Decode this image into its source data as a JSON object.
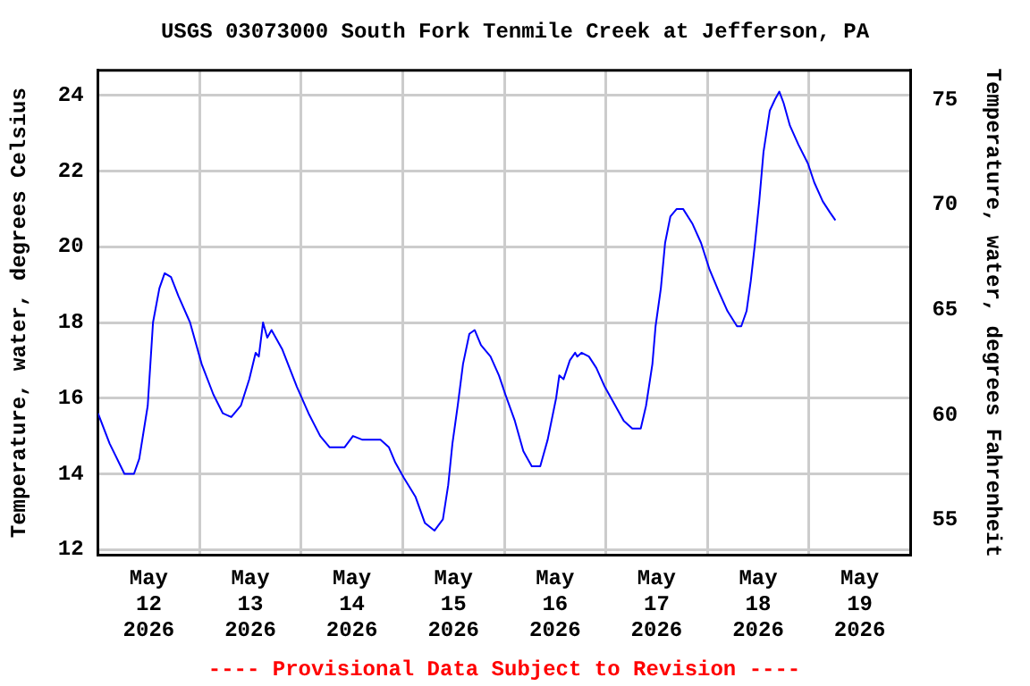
{
  "chart_data": {
    "type": "line",
    "title": "USGS 03073000 South Fork Tenmile Creek at Jefferson, PA",
    "ylabel": "Temperature, water, degrees Celsius",
    "y2label": "Temperature, water, degrees Fahrenheit",
    "annotations": [
      "---- Provisional Data Subject to Revision ----"
    ],
    "x": [
      "2026-05-12T00:00",
      "2026-05-12T02:45",
      "2026-05-12T06:15",
      "2026-05-12T08:30",
      "2026-05-12T09:45",
      "2026-05-12T11:45",
      "2026-05-12T13:00",
      "2026-05-12T14:30",
      "2026-05-12T15:45",
      "2026-05-12T17:15",
      "2026-05-12T19:00",
      "2026-05-12T21:45",
      "2026-05-13T00:30",
      "2026-05-13T03:15",
      "2026-05-13T05:30",
      "2026-05-13T07:30",
      "2026-05-13T09:45",
      "2026-05-13T11:45",
      "2026-05-13T13:15",
      "2026-05-13T14:00",
      "2026-05-13T15:00",
      "2026-05-13T16:00",
      "2026-05-13T17:00",
      "2026-05-13T19:30",
      "2026-05-13T23:00",
      "2026-05-14T01:45",
      "2026-05-14T04:30",
      "2026-05-14T06:45",
      "2026-05-14T10:15",
      "2026-05-14T12:15",
      "2026-05-14T14:30",
      "2026-05-14T18:45",
      "2026-05-14T20:45",
      "2026-05-14T22:15",
      "2026-05-15T00:15",
      "2026-05-15T03:00",
      "2026-05-15T05:15",
      "2026-05-15T07:30",
      "2026-05-15T09:30",
      "2026-05-15T10:45",
      "2026-05-15T11:45",
      "2026-05-15T13:00",
      "2026-05-15T14:15",
      "2026-05-15T15:45",
      "2026-05-15T17:00",
      "2026-05-15T18:30",
      "2026-05-15T20:45",
      "2026-05-15T22:45",
      "2026-05-16T00:15",
      "2026-05-16T02:30",
      "2026-05-16T04:30",
      "2026-05-16T06:30",
      "2026-05-16T08:30",
      "2026-05-16T10:15",
      "2026-05-16T12:15",
      "2026-05-16T13:00",
      "2026-05-16T14:00",
      "2026-05-16T15:30",
      "2026-05-16T16:45",
      "2026-05-16T17:15",
      "2026-05-16T18:15",
      "2026-05-16T20:00",
      "2026-05-16T21:45",
      "2026-05-16T23:45",
      "2026-05-17T02:15",
      "2026-05-17T04:15",
      "2026-05-17T06:15",
      "2026-05-17T08:15",
      "2026-05-17T09:30",
      "2026-05-17T11:00",
      "2026-05-17T11:45",
      "2026-05-17T13:00",
      "2026-05-17T14:00",
      "2026-05-17T15:15",
      "2026-05-17T16:45",
      "2026-05-17T18:15",
      "2026-05-17T20:30",
      "2026-05-17T22:30",
      "2026-05-18T00:30",
      "2026-05-18T02:45",
      "2026-05-18T04:45",
      "2026-05-18T07:00",
      "2026-05-18T08:00",
      "2026-05-18T09:15",
      "2026-05-18T10:15",
      "2026-05-18T11:15",
      "2026-05-18T12:15",
      "2026-05-18T13:15",
      "2026-05-18T14:45",
      "2026-05-18T16:00",
      "2026-05-18T17:00",
      "2026-05-18T18:00",
      "2026-05-18T19:30",
      "2026-05-18T21:30",
      "2026-05-18T23:45",
      "2026-05-19T01:15",
      "2026-05-19T03:15",
      "2026-05-19T05:00",
      "2026-05-19T06:15"
    ],
    "series": [
      {
        "color": "#0000ff",
        "values": [
          15.6,
          14.8,
          14.0,
          14.0,
          14.4,
          15.8,
          18.0,
          18.9,
          19.3,
          19.2,
          18.7,
          18.0,
          16.9,
          16.1,
          15.6,
          15.5,
          15.8,
          16.5,
          17.2,
          17.1,
          18.0,
          17.6,
          17.8,
          17.3,
          16.3,
          15.6,
          15.0,
          14.7,
          14.7,
          15.0,
          14.9,
          14.9,
          14.7,
          14.3,
          13.9,
          13.4,
          12.7,
          12.5,
          12.8,
          13.7,
          14.8,
          15.8,
          16.9,
          17.7,
          17.8,
          17.4,
          17.1,
          16.6,
          16.1,
          15.4,
          14.6,
          14.2,
          14.2,
          14.9,
          16.0,
          16.6,
          16.5,
          17.0,
          17.2,
          17.1,
          17.2,
          17.1,
          16.8,
          16.3,
          15.8,
          15.4,
          15.2,
          15.2,
          15.8,
          16.9,
          17.9,
          18.9,
          20.1,
          20.8,
          21.0,
          21.0,
          20.6,
          20.1,
          19.4,
          18.8,
          18.3,
          17.9,
          17.9,
          18.3,
          19.1,
          20.1,
          21.2,
          22.5,
          23.6,
          23.9,
          24.1,
          23.8,
          23.2,
          22.7,
          22.2,
          21.7,
          21.2,
          20.9,
          20.7
        ]
      }
    ],
    "marker": "none",
    "grid": true,
    "xlim": [
      "2026-05-12T00:00",
      "2026-05-20T00:00"
    ],
    "xticks": [
      {
        "value": "2026-05-12T12:00",
        "label": "May\n12\n2026"
      },
      {
        "value": "2026-05-13T00:00",
        "label": null
      },
      {
        "value": "2026-05-13T12:00",
        "label": "May\n13\n2026"
      },
      {
        "value": "2026-05-14T00:00",
        "label": null
      },
      {
        "value": "2026-05-14T12:00",
        "label": "May\n14\n2026"
      },
      {
        "value": "2026-05-15T00:00",
        "label": null
      },
      {
        "value": "2026-05-15T12:00",
        "label": "May\n15\n2026"
      },
      {
        "value": "2026-05-16T00:00",
        "label": null
      },
      {
        "value": "2026-05-16T12:00",
        "label": "May\n16\n2026"
      },
      {
        "value": "2026-05-17T00:00",
        "label": null
      },
      {
        "value": "2026-05-17T12:00",
        "label": "May\n17\n2026"
      },
      {
        "value": "2026-05-18T00:00",
        "label": null
      },
      {
        "value": "2026-05-18T12:00",
        "label": "May\n18\n2026"
      },
      {
        "value": "2026-05-19T00:00",
        "label": null
      },
      {
        "value": "2026-05-19T12:00",
        "label": "May\n19\n2026"
      }
    ],
    "ylim": [
      11.85,
      24.66
    ],
    "yticks": [
      12,
      14,
      16,
      18,
      20,
      22,
      24
    ],
    "y2lim": [
      53.33,
      76.39
    ],
    "y2ticks": [
      55,
      60,
      65,
      70,
      75
    ]
  }
}
